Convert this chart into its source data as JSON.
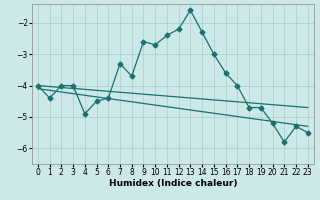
{
  "xlabel": "Humidex (Indice chaleur)",
  "background_color": "#cce8e8",
  "grid_color": "#aacccc",
  "line_color": "#1a7070",
  "xlim": [
    -0.5,
    23.5
  ],
  "ylim": [
    -6.5,
    -1.4
  ],
  "yticks": [
    -6,
    -5,
    -4,
    -3,
    -2
  ],
  "xticks": [
    0,
    1,
    2,
    3,
    4,
    5,
    6,
    7,
    8,
    9,
    10,
    11,
    12,
    13,
    14,
    15,
    16,
    17,
    18,
    19,
    20,
    21,
    22,
    23
  ],
  "main_x": [
    0,
    1,
    2,
    3,
    4,
    5,
    6,
    7,
    8,
    9,
    10,
    11,
    12,
    13,
    14,
    15,
    16,
    17,
    18,
    19,
    20,
    21,
    22,
    23
  ],
  "main_y": [
    -4.0,
    -4.4,
    -4.0,
    -4.0,
    -4.9,
    -4.5,
    -4.4,
    -3.3,
    -3.7,
    -2.6,
    -2.7,
    -2.4,
    -2.2,
    -1.6,
    -2.3,
    -3.0,
    -3.6,
    -4.0,
    -4.7,
    -4.7,
    -5.2,
    -5.8,
    -5.3,
    -5.5
  ],
  "line2_x": [
    0,
    23
  ],
  "line2_y": [
    -4.0,
    -4.7
  ],
  "line3_x": [
    0,
    23
  ],
  "line3_y": [
    -4.1,
    -5.3
  ]
}
